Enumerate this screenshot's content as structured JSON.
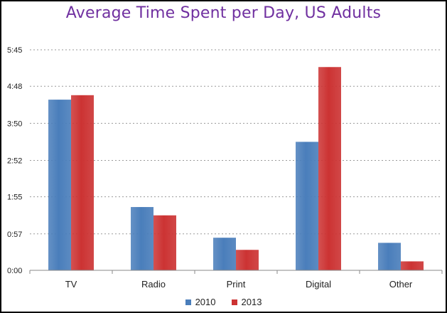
{
  "chart_data": {
    "type": "bar",
    "title": "Average Time Spent per Day, US Adults",
    "xlabel": "",
    "ylabel": "",
    "categories": [
      "TV",
      "Radio",
      "Print",
      "Digital",
      "Other"
    ],
    "series": [
      {
        "name": "2010",
        "color": "#4a7ebb",
        "values_minutes": [
          267,
          99,
          51,
          201,
          43
        ]
      },
      {
        "name": "2013",
        "color": "#cc3333",
        "values_minutes": [
          274,
          86,
          32,
          318,
          14
        ]
      }
    ],
    "yticks": [
      {
        "value": 0,
        "label": "0:00"
      },
      {
        "value": 57,
        "label": "0:57"
      },
      {
        "value": 115,
        "label": "1:55"
      },
      {
        "value": 172,
        "label": "2:52"
      },
      {
        "value": 230,
        "label": "3:50"
      },
      {
        "value": 288,
        "label": "4:48"
      },
      {
        "value": 345,
        "label": "5:45"
      }
    ],
    "ylim": [
      0,
      345
    ],
    "grid": true,
    "legend_position": "bottom"
  }
}
